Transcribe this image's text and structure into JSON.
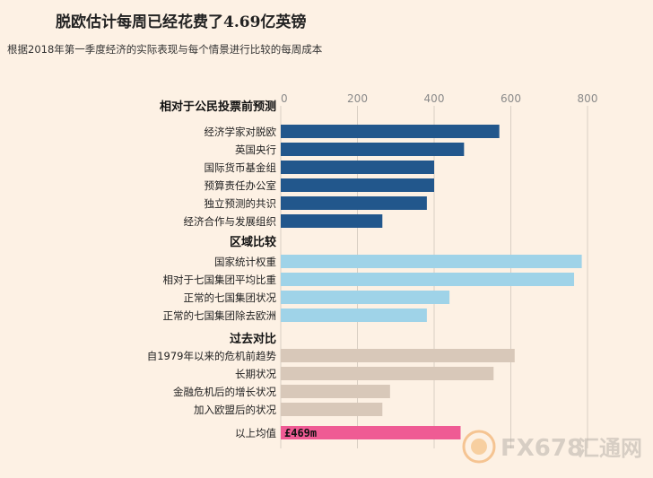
{
  "title": "脱欧估计每周已经花费了4.69亿英镑",
  "subtitle": "根据2018年第一季度经济的实际表现与每个情景进行比较的每周成本",
  "watermark_text": "FX678 汇通网",
  "colors": {
    "background": "#fdf1e4",
    "group1": "#22578c",
    "group2": "#9fd3e8",
    "group3": "#d8c8b9",
    "average": "#ef5b94",
    "gridline": "#d9cfc3",
    "tick": "#8a8a8a"
  },
  "chart_data": {
    "type": "bar",
    "orientation": "horizontal",
    "xlim": [
      0,
      800
    ],
    "xticks": [
      0,
      200,
      400,
      600,
      800
    ],
    "grid": true,
    "groups": [
      {
        "label": "相对于公民投票前预测",
        "color_key": "group1",
        "categories": [
          "经济学家对脱欧",
          "英国央行",
          "国际货币基金组",
          "预算责任办公室",
          "独立预测的共识",
          "经济合作与发展组织"
        ],
        "values": [
          570,
          478,
          400,
          400,
          381,
          265
        ]
      },
      {
        "label": "区域比较",
        "color_key": "group2",
        "categories": [
          "国家统计权重",
          "相对于七国集团平均比重",
          "正常的七国集团状况",
          "正常的七国集团除去欧洲"
        ],
        "values": [
          785,
          765,
          440,
          381
        ]
      },
      {
        "label": "过去对比",
        "color_key": "group3",
        "categories": [
          "自1979年以来的危机前趋势",
          "长期状况",
          "金融危机后的增长状况",
          "加入欧盟后的状况"
        ],
        "values": [
          610,
          555,
          285,
          265
        ]
      },
      {
        "label": "",
        "color_key": "average",
        "categories": [
          "以上均值"
        ],
        "values": [
          469
        ],
        "value_labels": [
          "£469m"
        ]
      }
    ]
  }
}
